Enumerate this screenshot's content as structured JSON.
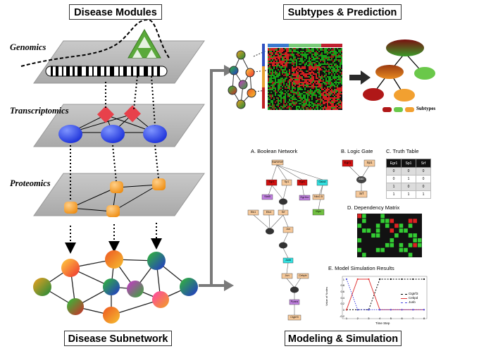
{
  "titles": {
    "disease_modules": "Disease Modules",
    "subtypes_prediction": "Subtypes & Prediction",
    "disease_subnetwork": "Disease Subnetwork",
    "modeling_simulation": "Modeling & Simulation"
  },
  "layers": {
    "genomics": "Genomics",
    "transcriptomics": "Transcriptomics",
    "proteomics": "Proteomics"
  },
  "subtypes_legend": "Subtypes",
  "boolean_network": {
    "title": "A. Boolean  Network",
    "nodes": [
      "RAR/RXR",
      "Egr1",
      "Sp1",
      "Egr1",
      "Gata4",
      "Egr1ko",
      "Stat5",
      "Nkx2-5",
      "Elk1",
      "Elk4",
      "Srf",
      "Jun",
      "Junb",
      "Jun",
      "Cebpb",
      "Cebpa",
      "Ppara",
      "Ctgtrf3",
      "Myo"
    ]
  },
  "logic_gate": {
    "title": "B. Logic Gate",
    "nodes": [
      "Egr1",
      "Sp1",
      "AND",
      "Srf"
    ]
  },
  "truth_table": {
    "title": "C. Truth Table",
    "headers": [
      "Egr1",
      "Sp1",
      "Srf"
    ],
    "rows": [
      [
        "0",
        "0",
        "0"
      ],
      [
        "0",
        "1",
        "0"
      ],
      [
        "1",
        "0",
        "0"
      ],
      [
        "1",
        "1",
        "1"
      ]
    ]
  },
  "dependency_matrix": {
    "title": "D. Dependency Matrix"
  },
  "simulation": {
    "title": "E. Model Simulation Results",
    "ylabel": "Value of Nodes",
    "xlabel": "Time Step",
    "x_ticks": [
      "1",
      "2",
      "3",
      "4",
      "5",
      "6",
      "7",
      "8"
    ],
    "y_ticks": [
      "-0.2",
      "0",
      "0.2",
      "0.4",
      "0.6",
      "0.8",
      "1"
    ],
    "legend": [
      "Ctgtrf3",
      "Cebpd",
      "Junb"
    ],
    "colors": [
      "#000000",
      "#e03a3a",
      "#4a4ae0"
    ]
  },
  "chart_data": {
    "type": "line",
    "title": "E. Model Simulation Results",
    "xlabel": "Time Step",
    "ylabel": "Value of Nodes",
    "x": [
      1,
      2,
      3,
      4,
      5,
      6,
      7,
      8
    ],
    "series": [
      {
        "name": "Ctgtrf3",
        "values": [
          0,
          0,
          0,
          1,
          1,
          1,
          1,
          1
        ]
      },
      {
        "name": "Cebpd",
        "values": [
          0,
          1,
          1,
          0,
          0,
          0,
          0,
          0
        ]
      },
      {
        "name": "Junb",
        "values": [
          1,
          0,
          0,
          0,
          0,
          0,
          0,
          0
        ]
      }
    ],
    "ylim": [
      -0.2,
      1
    ]
  },
  "colors": {
    "plane": "#b9b9b9",
    "transcript_node": "#1f3df0",
    "protein_node": "#f5a02a",
    "diamond": "#e8414b",
    "triangle": "#5aa93a",
    "arrow": "#7a7a7a"
  }
}
